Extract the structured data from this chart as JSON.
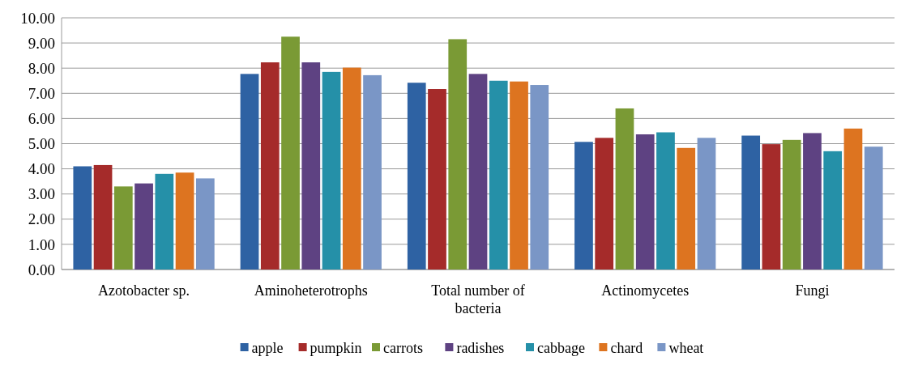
{
  "chart_data": {
    "type": "bar",
    "categories": [
      "Azotobacter sp.",
      "Aminoheterotrophs",
      "Total number of bacteria",
      "Actinomycetes",
      "Fungi"
    ],
    "series": [
      {
        "name": "apple",
        "color": "#2e62a3",
        "values": [
          4.1,
          7.77,
          7.42,
          5.07,
          5.32
        ]
      },
      {
        "name": "pumpkin",
        "color": "#a52b2a",
        "values": [
          4.15,
          8.23,
          7.17,
          5.23,
          4.98
        ]
      },
      {
        "name": "carrots",
        "color": "#7a9a35",
        "values": [
          3.3,
          9.25,
          9.15,
          6.4,
          5.15
        ]
      },
      {
        "name": "radishes",
        "color": "#5e4282",
        "values": [
          3.42,
          8.23,
          7.77,
          5.37,
          5.42
        ]
      },
      {
        "name": "cabbage",
        "color": "#2590a8",
        "values": [
          3.8,
          7.85,
          7.5,
          5.45,
          4.7
        ]
      },
      {
        "name": "chard",
        "color": "#dd7420",
        "values": [
          3.85,
          8.02,
          7.47,
          4.83,
          5.6
        ]
      },
      {
        "name": "wheat",
        "color": "#7a96c6",
        "values": [
          3.62,
          7.72,
          7.33,
          5.23,
          4.88
        ]
      }
    ],
    "ylim": [
      0,
      10
    ],
    "yticks": [
      {
        "value": 0,
        "label": "0.00"
      },
      {
        "value": 1,
        "label": "1.00"
      },
      {
        "value": 2,
        "label": "2.00"
      },
      {
        "value": 3,
        "label": "3.00"
      },
      {
        "value": 4,
        "label": "4.00"
      },
      {
        "value": 5,
        "label": "5.00"
      },
      {
        "value": 6,
        "label": "6.00"
      },
      {
        "value": 7,
        "label": "7.00"
      },
      {
        "value": 8,
        "label": "8.00"
      },
      {
        "value": 9,
        "label": "9.00"
      },
      {
        "value": 10,
        "label": "10.00"
      }
    ],
    "grid": "y",
    "legend": "bottom"
  }
}
